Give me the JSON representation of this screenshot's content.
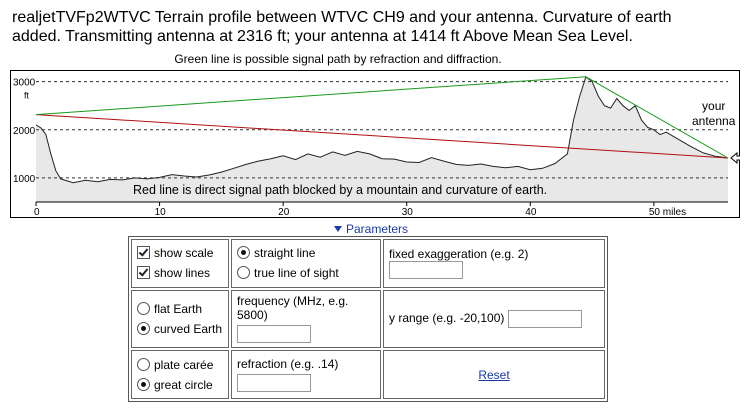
{
  "header": {
    "line1": "realjetTVFp2WTVC Terrain profile between WTVC CH9 and your antenna. Curvature of earth",
    "line2": "added. Transmitting antenna at 2316 ft; your antenna at 1414 ft Above Mean Sea Level."
  },
  "notes": {
    "green": "Green line is possible signal path by refraction and diffraction.",
    "red": "Red line is direct signal path blocked by a mountain and curvature of earth.",
    "antenna_line1": "your",
    "antenna_line2": "antenna"
  },
  "chart_data": {
    "type": "line",
    "x_unit": "miles",
    "y_unit": "ft",
    "xlim": [
      0,
      56
    ],
    "ylim": [
      500,
      3200
    ],
    "y_ticks": [
      "3000",
      "2000",
      "1000"
    ],
    "x_ticks": [
      "0",
      "10",
      "20",
      "30",
      "40",
      "50 miles"
    ],
    "transmitter_height_ft": 2316,
    "antenna_height_ft": 1414,
    "series": [
      {
        "line": "terrain",
        "color": "#222222",
        "x": [
          0,
          0.4,
          0.8,
          1.2,
          1.6,
          2,
          3,
          4,
          5,
          6,
          7,
          8,
          9,
          10,
          11,
          12,
          13,
          14,
          15,
          16,
          17,
          18,
          19,
          20,
          21,
          22,
          23,
          24,
          25,
          26,
          27,
          28,
          29,
          30,
          31,
          32,
          33,
          34,
          35,
          36,
          37,
          38,
          39,
          40,
          41,
          42,
          43,
          43.5,
          44,
          44.5,
          45,
          45.5,
          46,
          46.5,
          47,
          47.5,
          48,
          48.5,
          49,
          49.5,
          50,
          50.5,
          51,
          52,
          53,
          54,
          55,
          56
        ],
        "y": [
          2100,
          2040,
          1900,
          1500,
          1150,
          980,
          900,
          950,
          920,
          970,
          960,
          1000,
          980,
          1010,
          1070,
          1040,
          1020,
          1060,
          1120,
          1200,
          1280,
          1350,
          1400,
          1460,
          1380,
          1500,
          1430,
          1540,
          1470,
          1550,
          1500,
          1400,
          1390,
          1330,
          1320,
          1420,
          1350,
          1280,
          1260,
          1290,
          1240,
          1210,
          1240,
          1170,
          1200,
          1300,
          1500,
          2200,
          2700,
          3100,
          3000,
          2700,
          2500,
          2450,
          2650,
          2500,
          2400,
          2500,
          2200,
          2050,
          2000,
          1900,
          1950,
          1800,
          1650,
          1520,
          1450,
          1414
        ]
      },
      {
        "line": "direct-path",
        "color": "#b01010",
        "x": [
          0,
          56
        ],
        "y": [
          2316,
          1414
        ]
      },
      {
        "line": "refraction-path",
        "color": "#1a9a1a",
        "x": [
          0,
          44.5,
          56
        ],
        "y": [
          2316,
          3100,
          1414
        ]
      }
    ]
  },
  "params_link": "Parameters",
  "form": {
    "show_scale": "show scale",
    "show_lines": "show lines",
    "straight_line": "straight line",
    "true_line": "true line of sight",
    "fixed_exag": "fixed exaggeration (e.g. 2)",
    "flat_earth": "flat Earth",
    "curved_earth": "curved Earth",
    "frequency": "frequency (MHz, e.g. 5800)",
    "y_range": "y range (e.g. -20,100)",
    "plate_caree": "plate carée",
    "great_circle": "great circle",
    "refraction": "refraction (e.g. .14)",
    "reset": "Reset"
  }
}
